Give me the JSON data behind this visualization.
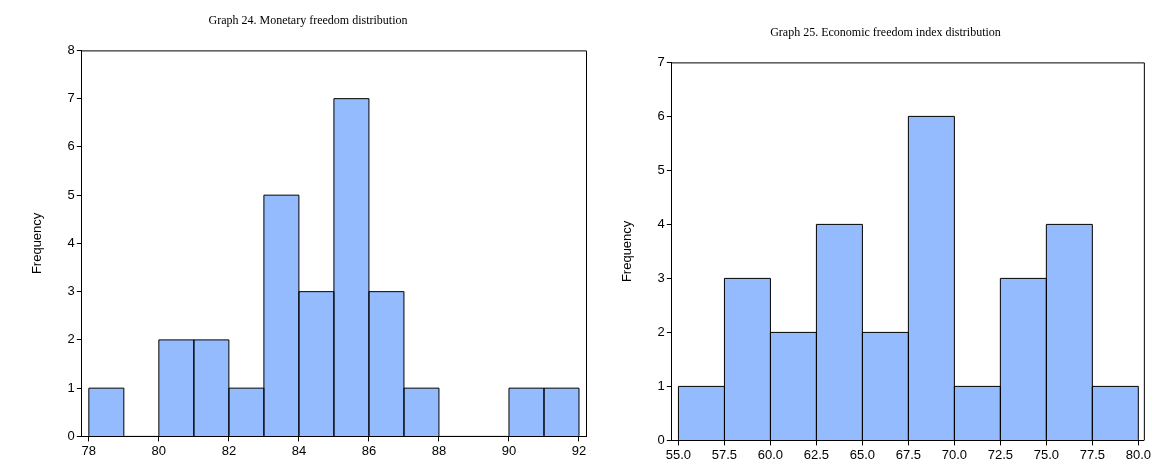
{
  "chart_data": [
    {
      "type": "histogram",
      "title": "Graph 24. Monetary freedom distribution",
      "ylabel": "Frequency",
      "bins": [
        78,
        79,
        80,
        81,
        82,
        83,
        84,
        85,
        86,
        87,
        88,
        89,
        90,
        91,
        92
      ],
      "values": [
        1,
        0,
        2,
        2,
        1,
        5,
        3,
        7,
        3,
        1,
        0,
        0,
        1,
        1
      ],
      "color": "#94bbfd",
      "xlim": [
        77.8,
        92.2
      ],
      "xticks": [
        78,
        80,
        82,
        84,
        86,
        88,
        90,
        92
      ],
      "ylim": [
        0,
        8
      ],
      "yticks": [
        0,
        1,
        2,
        3,
        4,
        5,
        6,
        7,
        8
      ],
      "grid": false,
      "legend": false
    },
    {
      "type": "histogram",
      "title": "Graph 25. Economic freedom index distribution",
      "ylabel": "Frequency",
      "bins": [
        55,
        57.5,
        60,
        62.5,
        65,
        67.5,
        70,
        72.5,
        75,
        77.5,
        80
      ],
      "values": [
        1,
        3,
        2,
        4,
        2,
        6,
        1,
        3,
        4,
        1
      ],
      "color": "#94bbfd",
      "xlim": [
        54.64,
        80.3
      ],
      "xticks": [
        {
          "value": 55,
          "label": "55.0"
        },
        {
          "value": 57.5,
          "label": "57.5"
        },
        {
          "value": 60,
          "label": "60.0"
        },
        {
          "value": 62.5,
          "label": "62.5"
        },
        {
          "value": 65,
          "label": "65.0"
        },
        {
          "value": 67.5,
          "label": "67.5"
        },
        {
          "value": 70,
          "label": "70.0"
        },
        {
          "value": 72.5,
          "label": "72.5"
        },
        {
          "value": 75,
          "label": "75.0"
        },
        {
          "value": 77.5,
          "label": "77.5"
        },
        {
          "value": 80,
          "label": "80.0"
        }
      ],
      "ylim": [
        0,
        7
      ],
      "yticks": [
        0,
        1,
        2,
        3,
        4,
        5,
        6,
        7
      ],
      "grid": false,
      "legend": false
    }
  ]
}
